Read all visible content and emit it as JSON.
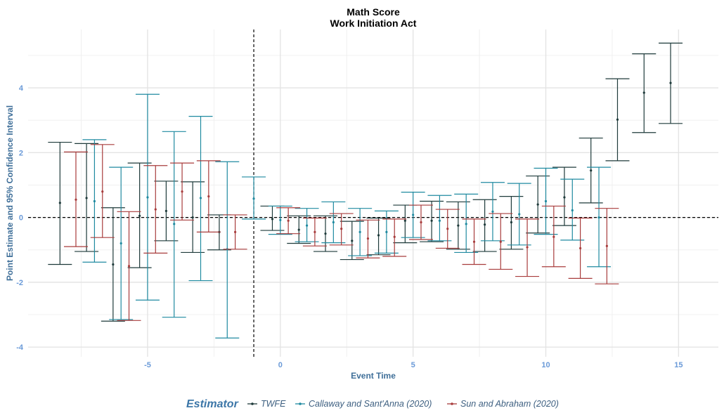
{
  "chart_data": {
    "type": "errorbar",
    "title": "Math Score",
    "subtitle": "Work Initiation Act",
    "xlabel": "Event Time",
    "ylabel": "Point Estimate and 95% Confidence Interval",
    "xlim": [
      -9.5,
      16.5
    ],
    "ylim": [
      -4.3,
      5.8
    ],
    "x_ticks": [
      -5,
      0,
      5,
      10,
      15
    ],
    "y_ticks": [
      -4,
      -2,
      0,
      2,
      4
    ],
    "reference_lines": {
      "vertical_x": -1,
      "horizontal_y": 0
    },
    "grid": true,
    "legend": {
      "title": "Estimator",
      "position": "bottom"
    },
    "series": [
      {
        "name": "TWFE",
        "color": "#1e3a3a",
        "offset": -0.3,
        "points": [
          {
            "x": -8,
            "y": 0.45,
            "lo": -1.45,
            "hi": 2.32
          },
          {
            "x": -7,
            "y": 0.6,
            "lo": -1.05,
            "hi": 2.28
          },
          {
            "x": -6,
            "y": -1.45,
            "lo": -3.2,
            "hi": 0.3
          },
          {
            "x": -5,
            "y": 0.05,
            "lo": -1.55,
            "hi": 1.68
          },
          {
            "x": -4,
            "y": 0.2,
            "lo": -0.72,
            "hi": 1.12
          },
          {
            "x": -3,
            "y": 0.0,
            "lo": -1.08,
            "hi": 1.1
          },
          {
            "x": -2,
            "y": -0.45,
            "lo": -1.0,
            "hi": 0.08
          },
          {
            "x": 0,
            "y": -0.05,
            "lo": -0.4,
            "hi": 0.35
          },
          {
            "x": 1,
            "y": -0.38,
            "lo": -0.8,
            "hi": 0.05
          },
          {
            "x": 2,
            "y": -0.5,
            "lo": -1.05,
            "hi": 0.05
          },
          {
            "x": 3,
            "y": -0.72,
            "lo": -1.3,
            "hi": -0.12
          },
          {
            "x": 4,
            "y": -0.55,
            "lo": -1.15,
            "hi": -0.02
          },
          {
            "x": 5,
            "y": -0.1,
            "lo": -0.78,
            "hi": 0.38
          },
          {
            "x": 6,
            "y": -0.1,
            "lo": -0.75,
            "hi": 0.5
          },
          {
            "x": 7,
            "y": -0.25,
            "lo": -0.98,
            "hi": 0.48
          },
          {
            "x": 8,
            "y": -0.22,
            "lo": -1.05,
            "hi": 0.55
          },
          {
            "x": 9,
            "y": -0.15,
            "lo": -0.98,
            "hi": 0.65
          },
          {
            "x": 10,
            "y": 0.4,
            "lo": -0.48,
            "hi": 1.28
          },
          {
            "x": 11,
            "y": 0.62,
            "lo": -0.25,
            "hi": 1.55
          },
          {
            "x": 12,
            "y": 1.45,
            "lo": 0.45,
            "hi": 2.45
          },
          {
            "x": 13,
            "y": 3.02,
            "lo": 1.75,
            "hi": 4.28
          },
          {
            "x": 14,
            "y": 3.85,
            "lo": 2.62,
            "hi": 5.05
          },
          {
            "x": 15,
            "y": 4.15,
            "lo": 2.9,
            "hi": 5.38
          }
        ]
      },
      {
        "name": "Callaway and Sant'Anna (2020)",
        "color": "#1f8aa0",
        "offset": 0.0,
        "points": [
          {
            "x": -7,
            "y": 0.5,
            "lo": -1.38,
            "hi": 2.4
          },
          {
            "x": -6,
            "y": -0.8,
            "lo": -3.15,
            "hi": 1.55
          },
          {
            "x": -5,
            "y": 0.62,
            "lo": -2.55,
            "hi": 3.8
          },
          {
            "x": -4,
            "y": -0.2,
            "lo": -3.08,
            "hi": 2.65
          },
          {
            "x": -3,
            "y": 0.6,
            "lo": -1.95,
            "hi": 3.12
          },
          {
            "x": -2,
            "y": -0.98,
            "lo": -3.72,
            "hi": 1.72
          },
          {
            "x": -1,
            "y": 0.58,
            "lo": -0.05,
            "hi": 1.25
          },
          {
            "x": 0,
            "y": -0.08,
            "lo": -0.52,
            "hi": 0.35
          },
          {
            "x": 1,
            "y": -0.25,
            "lo": -0.75,
            "hi": 0.28
          },
          {
            "x": 2,
            "y": -0.15,
            "lo": -0.78,
            "hi": 0.48
          },
          {
            "x": 3,
            "y": -0.45,
            "lo": -1.18,
            "hi": 0.28
          },
          {
            "x": 4,
            "y": -0.45,
            "lo": -1.1,
            "hi": 0.2
          },
          {
            "x": 5,
            "y": 0.08,
            "lo": -0.62,
            "hi": 0.78
          },
          {
            "x": 6,
            "y": -0.1,
            "lo": -0.72,
            "hi": 0.68
          },
          {
            "x": 7,
            "y": -0.2,
            "lo": -1.08,
            "hi": 0.72
          },
          {
            "x": 8,
            "y": 0.18,
            "lo": -0.72,
            "hi": 1.08
          },
          {
            "x": 9,
            "y": 0.1,
            "lo": -0.85,
            "hi": 1.05
          },
          {
            "x": 10,
            "y": 0.5,
            "lo": -0.52,
            "hi": 1.52
          },
          {
            "x": 11,
            "y": 0.22,
            "lo": -0.7,
            "hi": 1.18
          },
          {
            "x": 12,
            "y": 0.0,
            "lo": -1.52,
            "hi": 1.55
          }
        ]
      },
      {
        "name": "Sun and Abraham (2020)",
        "color": "#a83c3c",
        "offset": 0.3,
        "points": [
          {
            "x": -8,
            "y": 0.55,
            "lo": -0.9,
            "hi": 2.02
          },
          {
            "x": -7,
            "y": 0.8,
            "lo": -0.62,
            "hi": 2.25
          },
          {
            "x": -6,
            "y": -1.5,
            "lo": -3.18,
            "hi": 0.18
          },
          {
            "x": -5,
            "y": 0.25,
            "lo": -1.1,
            "hi": 1.6
          },
          {
            "x": -4,
            "y": 0.8,
            "lo": -0.08,
            "hi": 1.68
          },
          {
            "x": -3,
            "y": 0.65,
            "lo": -0.45,
            "hi": 1.75
          },
          {
            "x": -2,
            "y": -0.45,
            "lo": -0.98,
            "hi": 0.08
          },
          {
            "x": 0,
            "y": -0.1,
            "lo": -0.5,
            "hi": 0.3
          },
          {
            "x": 1,
            "y": -0.45,
            "lo": -0.88,
            "hi": -0.02
          },
          {
            "x": 2,
            "y": -0.35,
            "lo": -0.85,
            "hi": 0.12
          },
          {
            "x": 3,
            "y": -0.65,
            "lo": -1.25,
            "hi": -0.08
          },
          {
            "x": 4,
            "y": -0.6,
            "lo": -1.2,
            "hi": -0.05
          },
          {
            "x": 5,
            "y": -0.15,
            "lo": -0.68,
            "hi": 0.38
          },
          {
            "x": 6,
            "y": -0.35,
            "lo": -0.95,
            "hi": 0.25
          },
          {
            "x": 7,
            "y": -0.75,
            "lo": -1.45,
            "hi": -0.05
          },
          {
            "x": 8,
            "y": -0.75,
            "lo": -1.6,
            "hi": 0.12
          },
          {
            "x": 9,
            "y": -0.92,
            "lo": -1.82,
            "hi": -0.05
          },
          {
            "x": 10,
            "y": -0.6,
            "lo": -1.52,
            "hi": 0.35
          },
          {
            "x": 11,
            "y": -0.95,
            "lo": -1.88,
            "hi": -0.02
          },
          {
            "x": 12,
            "y": -0.88,
            "lo": -2.05,
            "hi": 0.28
          }
        ]
      }
    ]
  }
}
